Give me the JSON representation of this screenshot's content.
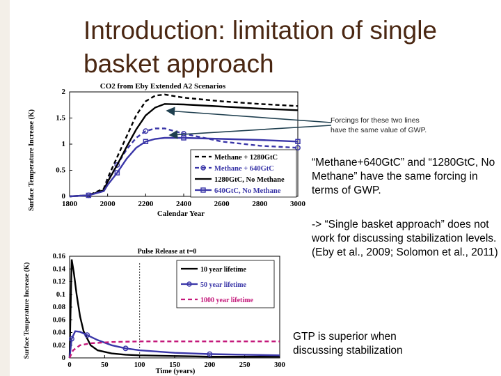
{
  "slide": {
    "title": "Introduction: limitation of single basket approach",
    "note_line1": "Forcings for these two lines",
    "note_line2": "have the same value of GWP.",
    "para1": "“Methane+640GtC” and “1280GtC, No Methane” have the same forcing in terms of GWP.",
    "para2": "-> “Single basket approach” does not work for discussing stabilization levels. (Eby et al., 2009; Solomon et al., 2011)",
    "para3": "GTP is superior when discussing stabilization"
  },
  "chart_data": [
    {
      "type": "line",
      "title": "CO2 from Eby Extended A2 Scenarios",
      "xlabel": "Calendar Year",
      "ylabel": "Surface Temperature Increase (K)",
      "xlim": [
        1800,
        3000
      ],
      "ylim": [
        0,
        2
      ],
      "xticks": [
        "1800",
        "2000",
        "2200",
        "2400",
        "2600",
        "2800",
        "3000"
      ],
      "yticks": [
        "0",
        "0.5",
        "1",
        "1.5",
        "2"
      ],
      "legend_position": "bottom-right",
      "series": [
        {
          "name": "Methane + 1280GtC",
          "color": "#000000",
          "dash": "6,4",
          "marker": "none",
          "x": [
            1800,
            1900,
            1980,
            2000,
            2050,
            2100,
            2150,
            2200,
            2250,
            2300,
            2400,
            2600,
            2800,
            3000
          ],
          "y": [
            0,
            0.02,
            0.15,
            0.35,
            0.75,
            1.15,
            1.55,
            1.82,
            1.93,
            1.95,
            1.89,
            1.82,
            1.77,
            1.73
          ]
        },
        {
          "name": "Methane + 640GtC",
          "color": "#3a36a8",
          "dash": "6,4",
          "marker": "circle",
          "x": [
            1800,
            1900,
            1980,
            2000,
            2050,
            2100,
            2150,
            2200,
            2250,
            2300,
            2400,
            2600,
            2800,
            3000
          ],
          "y": [
            0,
            0.02,
            0.12,
            0.3,
            0.6,
            0.9,
            1.12,
            1.25,
            1.3,
            1.3,
            1.2,
            1.05,
            0.97,
            0.93
          ]
        },
        {
          "name": "1280GtC, No Methane",
          "color": "#000000",
          "dash": "",
          "marker": "none",
          "x": [
            1800,
            1900,
            1980,
            2000,
            2050,
            2100,
            2150,
            2200,
            2250,
            2300,
            2400,
            2600,
            2800,
            3000
          ],
          "y": [
            0,
            0.02,
            0.12,
            0.28,
            0.6,
            0.95,
            1.28,
            1.55,
            1.7,
            1.77,
            1.76,
            1.72,
            1.68,
            1.65
          ]
        },
        {
          "name": "640GtC, No Methane",
          "color": "#3a36a8",
          "dash": "",
          "marker": "square",
          "x": [
            1800,
            1900,
            1980,
            2000,
            2050,
            2100,
            2150,
            2200,
            2250,
            2300,
            2400,
            2600,
            2800,
            3000
          ],
          "y": [
            0,
            0.02,
            0.1,
            0.22,
            0.45,
            0.72,
            0.93,
            1.05,
            1.1,
            1.12,
            1.12,
            1.1,
            1.08,
            1.05
          ]
        }
      ]
    },
    {
      "type": "line",
      "title": "Pulse Release at t=0",
      "xlabel": "Time (years)",
      "ylabel": "Surface Temperature Increase (K)",
      "xlim": [
        0,
        300
      ],
      "ylim": [
        0,
        0.16
      ],
      "xticks": [
        "0",
        "50",
        "100",
        "150",
        "200",
        "250",
        "300"
      ],
      "yticks": [
        "0",
        "0.02",
        "0.04",
        "0.06",
        "0.08",
        "0.1",
        "0.12",
        "0.14",
        "0.16"
      ],
      "legend_position": "top-right",
      "series": [
        {
          "name": "10 year lifetime",
          "color": "#000000",
          "dash": "",
          "marker": "none",
          "x": [
            0,
            3,
            6,
            10,
            15,
            20,
            30,
            40,
            60,
            80,
            100,
            150,
            200,
            250,
            300
          ],
          "y": [
            0,
            0.155,
            0.135,
            0.1,
            0.065,
            0.042,
            0.02,
            0.012,
            0.007,
            0.005,
            0.004,
            0.003,
            0.002,
            0.002,
            0.002
          ]
        },
        {
          "name": "50 year lifetime",
          "color": "#3a36a8",
          "dash": "",
          "marker": "circle",
          "x": [
            0,
            3,
            8,
            15,
            25,
            40,
            60,
            80,
            100,
            150,
            200,
            250,
            300
          ],
          "y": [
            0,
            0.03,
            0.042,
            0.041,
            0.036,
            0.028,
            0.02,
            0.015,
            0.012,
            0.008,
            0.006,
            0.005,
            0.004
          ]
        },
        {
          "name": "1000 year lifetime",
          "color": "#c4187a",
          "dash": "6,4",
          "marker": "none",
          "x": [
            0,
            5,
            15,
            30,
            60,
            100,
            150,
            200,
            250,
            300
          ],
          "y": [
            0,
            0.012,
            0.02,
            0.023,
            0.025,
            0.026,
            0.026,
            0.026,
            0.026,
            0.026
          ]
        }
      ]
    }
  ]
}
